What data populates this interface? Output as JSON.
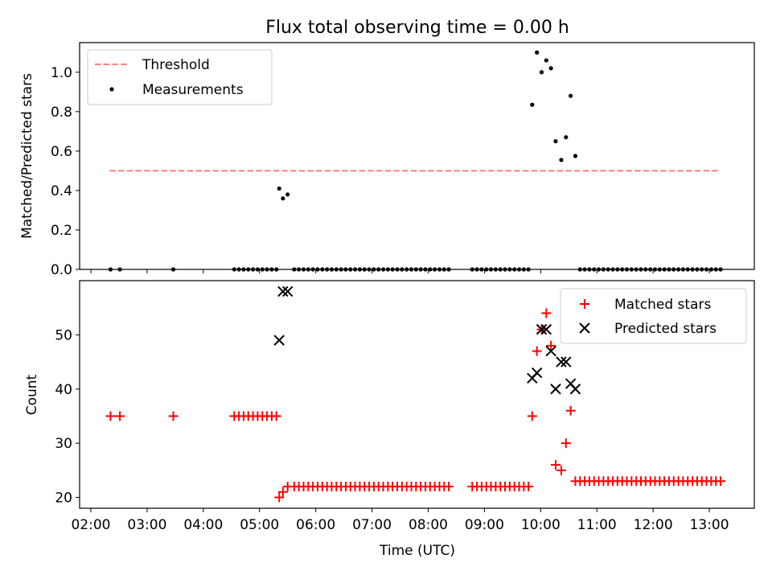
{
  "chart_data": [
    {
      "type": "scatter",
      "title": "Flux total observing time = 0.00 h",
      "xlabel": "",
      "ylabel": "Matched/Predicted stars",
      "xlim": [
        "01:48",
        "13:48"
      ],
      "ylim": [
        0,
        1.15
      ],
      "x_ticks": [
        "02:00",
        "03:00",
        "04:00",
        "05:00",
        "06:00",
        "07:00",
        "08:00",
        "09:00",
        "10:00",
        "11:00",
        "12:00",
        "13:00"
      ],
      "y_ticks": [
        "0.0",
        "0.2",
        "0.4",
        "0.6",
        "0.8",
        "1.0"
      ],
      "y_tick_values": [
        0,
        0.2,
        0.4,
        0.6,
        0.8,
        1.0
      ],
      "legend_position": "top-left",
      "series": [
        {
          "name": "Threshold",
          "kind": "dashed-line",
          "color": "#ff7f7f",
          "points": [
            [
              "02:20",
              0.5
            ],
            [
              "13:09",
              0.5
            ]
          ]
        },
        {
          "name": "Measurements",
          "kind": "dot",
          "color": "#000000",
          "points": [
            [
              "02:21",
              0
            ],
            [
              "02:31",
              0
            ],
            [
              "03:28",
              0
            ],
            [
              "04:33",
              0
            ],
            [
              "04:38",
              0
            ],
            [
              "04:43",
              0
            ],
            [
              "04:48",
              0
            ],
            [
              "04:53",
              0
            ],
            [
              "04:58",
              0
            ],
            [
              "05:03",
              0
            ],
            [
              "05:08",
              0
            ],
            [
              "05:13",
              0
            ],
            [
              "05:18",
              0
            ],
            [
              "05:21",
              0.41
            ],
            [
              "05:25",
              0.36
            ],
            [
              "05:30",
              0.38
            ],
            [
              "05:37",
              0
            ],
            [
              "05:42",
              0
            ],
            [
              "05:47",
              0
            ],
            [
              "05:52",
              0
            ],
            [
              "05:57",
              0
            ],
            [
              "06:02",
              0
            ],
            [
              "06:07",
              0
            ],
            [
              "06:12",
              0
            ],
            [
              "06:17",
              0
            ],
            [
              "06:22",
              0
            ],
            [
              "06:27",
              0
            ],
            [
              "06:32",
              0
            ],
            [
              "06:37",
              0
            ],
            [
              "06:42",
              0
            ],
            [
              "06:47",
              0
            ],
            [
              "06:52",
              0
            ],
            [
              "06:57",
              0
            ],
            [
              "07:02",
              0
            ],
            [
              "07:07",
              0
            ],
            [
              "07:12",
              0
            ],
            [
              "07:17",
              0
            ],
            [
              "07:22",
              0
            ],
            [
              "07:27",
              0
            ],
            [
              "07:32",
              0
            ],
            [
              "07:37",
              0
            ],
            [
              "07:42",
              0
            ],
            [
              "07:47",
              0
            ],
            [
              "07:52",
              0
            ],
            [
              "07:57",
              0
            ],
            [
              "08:02",
              0
            ],
            [
              "08:07",
              0
            ],
            [
              "08:12",
              0
            ],
            [
              "08:17",
              0
            ],
            [
              "08:22",
              0
            ],
            [
              "08:47",
              0
            ],
            [
              "08:52",
              0
            ],
            [
              "08:57",
              0
            ],
            [
              "09:02",
              0
            ],
            [
              "09:07",
              0
            ],
            [
              "09:12",
              0
            ],
            [
              "09:17",
              0
            ],
            [
              "09:22",
              0
            ],
            [
              "09:27",
              0
            ],
            [
              "09:32",
              0
            ],
            [
              "09:37",
              0
            ],
            [
              "09:42",
              0
            ],
            [
              "09:47",
              0
            ],
            [
              "09:51",
              0.835
            ],
            [
              "09:56",
              1.1
            ],
            [
              "10:01",
              1.0
            ],
            [
              "10:06",
              1.06
            ],
            [
              "10:11",
              1.02
            ],
            [
              "10:16",
              0.65
            ],
            [
              "10:22",
              0.555
            ],
            [
              "10:27",
              0.67
            ],
            [
              "10:32",
              0.88
            ],
            [
              "10:37",
              0.575
            ],
            [
              "10:42",
              0
            ],
            [
              "10:47",
              0
            ],
            [
              "10:52",
              0
            ],
            [
              "10:57",
              0
            ],
            [
              "11:02",
              0
            ],
            [
              "11:07",
              0
            ],
            [
              "11:12",
              0
            ],
            [
              "11:17",
              0
            ],
            [
              "11:22",
              0
            ],
            [
              "11:27",
              0
            ],
            [
              "11:32",
              0
            ],
            [
              "11:37",
              0
            ],
            [
              "11:42",
              0
            ],
            [
              "11:47",
              0
            ],
            [
              "11:52",
              0
            ],
            [
              "11:57",
              0
            ],
            [
              "12:02",
              0
            ],
            [
              "12:07",
              0
            ],
            [
              "12:12",
              0
            ],
            [
              "12:17",
              0
            ],
            [
              "12:22",
              0
            ],
            [
              "12:27",
              0
            ],
            [
              "12:32",
              0
            ],
            [
              "12:37",
              0
            ],
            [
              "12:42",
              0
            ],
            [
              "12:47",
              0
            ],
            [
              "12:52",
              0
            ],
            [
              "12:57",
              0
            ],
            [
              "13:02",
              0
            ],
            [
              "13:07",
              0
            ],
            [
              "13:12",
              0
            ]
          ]
        }
      ]
    },
    {
      "type": "scatter",
      "title": "",
      "xlabel": "Time (UTC)",
      "ylabel": "Count",
      "xlim": [
        "01:48",
        "13:48"
      ],
      "ylim": [
        18,
        60
      ],
      "x_ticks": [
        "02:00",
        "03:00",
        "04:00",
        "05:00",
        "06:00",
        "07:00",
        "08:00",
        "09:00",
        "10:00",
        "11:00",
        "12:00",
        "13:00"
      ],
      "y_ticks": [
        "20",
        "30",
        "40",
        "50"
      ],
      "y_tick_values": [
        20,
        30,
        40,
        50
      ],
      "legend_position": "top-right",
      "series": [
        {
          "name": "Matched stars",
          "kind": "plus",
          "color": "#ff0000",
          "points": [
            [
              "02:21",
              35
            ],
            [
              "02:31",
              35
            ],
            [
              "03:28",
              35
            ],
            [
              "04:33",
              35
            ],
            [
              "04:38",
              35
            ],
            [
              "04:43",
              35
            ],
            [
              "04:48",
              35
            ],
            [
              "04:53",
              35
            ],
            [
              "04:58",
              35
            ],
            [
              "05:03",
              35
            ],
            [
              "05:08",
              35
            ],
            [
              "05:13",
              35
            ],
            [
              "05:18",
              35
            ],
            [
              "05:21",
              20
            ],
            [
              "05:25",
              21
            ],
            [
              "05:30",
              22
            ],
            [
              "05:37",
              22
            ],
            [
              "05:42",
              22
            ],
            [
              "05:47",
              22
            ],
            [
              "05:52",
              22
            ],
            [
              "05:57",
              22
            ],
            [
              "06:02",
              22
            ],
            [
              "06:07",
              22
            ],
            [
              "06:12",
              22
            ],
            [
              "06:17",
              22
            ],
            [
              "06:22",
              22
            ],
            [
              "06:27",
              22
            ],
            [
              "06:32",
              22
            ],
            [
              "06:37",
              22
            ],
            [
              "06:42",
              22
            ],
            [
              "06:47",
              22
            ],
            [
              "06:52",
              22
            ],
            [
              "06:57",
              22
            ],
            [
              "07:02",
              22
            ],
            [
              "07:07",
              22
            ],
            [
              "07:12",
              22
            ],
            [
              "07:17",
              22
            ],
            [
              "07:22",
              22
            ],
            [
              "07:27",
              22
            ],
            [
              "07:32",
              22
            ],
            [
              "07:37",
              22
            ],
            [
              "07:42",
              22
            ],
            [
              "07:47",
              22
            ],
            [
              "07:52",
              22
            ],
            [
              "07:57",
              22
            ],
            [
              "08:02",
              22
            ],
            [
              "08:07",
              22
            ],
            [
              "08:12",
              22
            ],
            [
              "08:17",
              22
            ],
            [
              "08:22",
              22
            ],
            [
              "08:47",
              22
            ],
            [
              "08:52",
              22
            ],
            [
              "08:57",
              22
            ],
            [
              "09:02",
              22
            ],
            [
              "09:07",
              22
            ],
            [
              "09:12",
              22
            ],
            [
              "09:17",
              22
            ],
            [
              "09:22",
              22
            ],
            [
              "09:27",
              22
            ],
            [
              "09:32",
              22
            ],
            [
              "09:37",
              22
            ],
            [
              "09:42",
              22
            ],
            [
              "09:47",
              22
            ],
            [
              "09:51",
              35
            ],
            [
              "09:56",
              47
            ],
            [
              "10:01",
              51
            ],
            [
              "10:06",
              54
            ],
            [
              "10:11",
              48
            ],
            [
              "10:16",
              26
            ],
            [
              "10:22",
              25
            ],
            [
              "10:27",
              30
            ],
            [
              "10:32",
              36
            ],
            [
              "10:37",
              23
            ],
            [
              "10:42",
              23
            ],
            [
              "10:47",
              23
            ],
            [
              "10:52",
              23
            ],
            [
              "10:57",
              23
            ],
            [
              "11:02",
              23
            ],
            [
              "11:07",
              23
            ],
            [
              "11:12",
              23
            ],
            [
              "11:17",
              23
            ],
            [
              "11:22",
              23
            ],
            [
              "11:27",
              23
            ],
            [
              "11:32",
              23
            ],
            [
              "11:37",
              23
            ],
            [
              "11:42",
              23
            ],
            [
              "11:47",
              23
            ],
            [
              "11:52",
              23
            ],
            [
              "11:57",
              23
            ],
            [
              "12:02",
              23
            ],
            [
              "12:07",
              23
            ],
            [
              "12:12",
              23
            ],
            [
              "12:17",
              23
            ],
            [
              "12:22",
              23
            ],
            [
              "12:27",
              23
            ],
            [
              "12:32",
              23
            ],
            [
              "12:37",
              23
            ],
            [
              "12:42",
              23
            ],
            [
              "12:47",
              23
            ],
            [
              "12:52",
              23
            ],
            [
              "12:57",
              23
            ],
            [
              "13:02",
              23
            ],
            [
              "13:07",
              23
            ],
            [
              "13:12",
              23
            ]
          ]
        },
        {
          "name": "Predicted stars",
          "kind": "x",
          "color": "#000000",
          "points": [
            [
              "05:21",
              49
            ],
            [
              "05:25",
              58
            ],
            [
              "05:30",
              58
            ],
            [
              "09:51",
              42
            ],
            [
              "09:56",
              43
            ],
            [
              "10:01",
              51
            ],
            [
              "10:06",
              51
            ],
            [
              "10:11",
              47
            ],
            [
              "10:16",
              40
            ],
            [
              "10:22",
              45
            ],
            [
              "10:27",
              45
            ],
            [
              "10:32",
              41
            ],
            [
              "10:37",
              40
            ]
          ]
        }
      ]
    }
  ]
}
